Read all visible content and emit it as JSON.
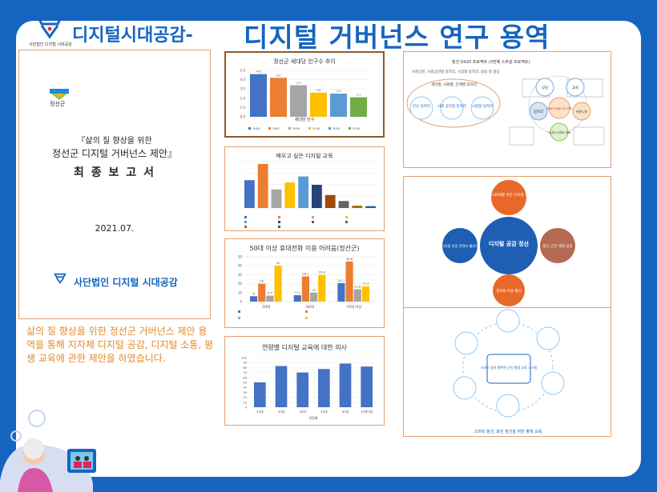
{
  "header": {
    "logo_sub": "사단법인 디지털 시대공감",
    "title_small": "디지털시대공감-",
    "title_big": "디지털 거버넌스 연구 용역"
  },
  "cover": {
    "org_small": "정선군",
    "line1": "『삶의 질 향상을 위한",
    "line2": "정선군 디지털 거버넌스 제안』",
    "line3": "최 종 보 고 서",
    "date": "2021.07.",
    "org": "사단법인 디지털 시대공감"
  },
  "description": "삶의 질 향상을 위한 정선군 거버넌스 제안 용역을 통해 지자체 디지털 공감, 디지털 소통, 평생 교육에 관한 제안을 하였습니다.",
  "colors": {
    "brand": "#1565c0",
    "accent": "#e08a2e",
    "frame": "#e4a070"
  },
  "chart_data": [
    {
      "type": "bar",
      "title": "정선군 세대당 인구수 추이",
      "xlabel": "세대당 인구",
      "categories": [
        "1983",
        "1987",
        "1995",
        "2000",
        "2005",
        "2020"
      ],
      "values": [
        4.6,
        4.2,
        3.4,
        2.6,
        2.5,
        2.1
      ],
      "ylim": [
        0,
        5
      ],
      "colors": [
        "#4472c4",
        "#ed7d31",
        "#a5a5a5",
        "#ffc000",
        "#5b9bd5",
        "#70ad47"
      ]
    },
    {
      "type": "bar",
      "title": "배우고 싶은 디지털 교육",
      "values": [
        60,
        95,
        40,
        55,
        68,
        50,
        28,
        15,
        5,
        4
      ],
      "colors": [
        "#4472c4",
        "#ed7d31",
        "#a5a5a5",
        "#ffc000",
        "#5b9bd5",
        "#264478",
        "#9e480e",
        "#636363",
        "#997300",
        "#255e91"
      ]
    },
    {
      "type": "bar",
      "title": "50대 이상 휴대전화 이용 어려움(정선군)",
      "categories": [
        "50대",
        "60대",
        "70대 이상"
      ],
      "series": [
        {
          "values": [
            6,
            7.1,
            20.7
          ]
        },
        {
          "values": [
            20,
            28.1,
            44.8
          ]
        },
        {
          "values": [
            6.7,
            10,
            13.8
          ]
        },
        {
          "values": [
            40,
            29.8,
            17.2
          ]
        }
      ],
      "ylim": [
        0,
        50
      ],
      "colors": [
        "#4472c4",
        "#ed7d31",
        "#a5a5a5",
        "#ffc000"
      ]
    },
    {
      "type": "bar",
      "title": "연령별 디지털 교육에 대한 의사",
      "xlabel": "연령별",
      "categories": [
        "20대",
        "30대",
        "40대",
        "50대",
        "60대",
        "70대이상"
      ],
      "values": [
        50,
        83,
        70,
        77,
        88,
        82
      ],
      "ylim": [
        0,
        100
      ],
      "colors": [
        "#4472c4"
      ]
    }
  ],
  "diagrams": {
    "d1_title": "정선 D420 프로젝트 (3번째 스무살 프로젝트)",
    "d1_sub": "사회공헌, 사회공헌형 일자리, 시장형 일자리, 삶의 질 향상",
    "d1_core": "개인별, 사회별, 단계별 일자리",
    "d1_circles": [
      "단순 일자리",
      "사회 공헌형 일자리",
      "시장형 일자리"
    ],
    "d1_ring": [
      "상담",
      "교육",
      "일자리",
      "커뮤니티",
      "시니어 스마트 허브"
    ],
    "d1_center": "3560 커뮤니티 구축",
    "d2_center": "디지털 공감 정선",
    "d2_top": "30~60대를 위한 디지털 교육",
    "d2_left": "디지털 관광 콘텐츠 활성화",
    "d2_right": "정선 군민 세대 공감",
    "d2_bottom": "정보화 마을 활성",
    "d3_center": "스마트 정선 행복한 군민 평생 교육 시스템",
    "d3_caption": "스마트 정선, 효민 정선을 위한 평생 교육"
  }
}
